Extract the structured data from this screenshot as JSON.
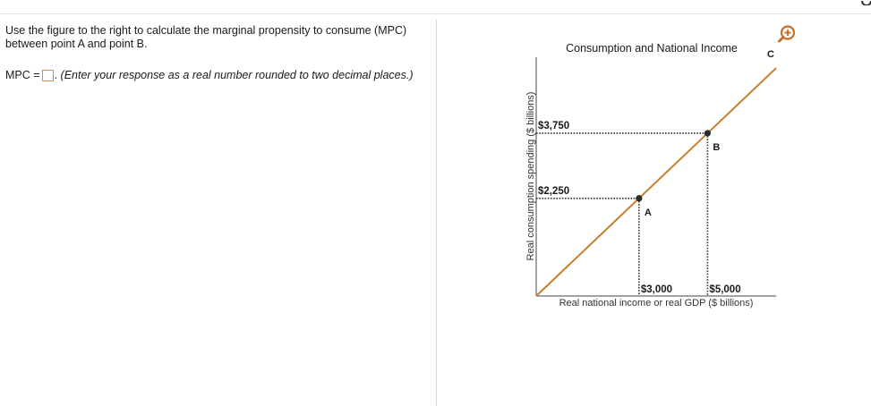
{
  "question": {
    "text": "Use the figure to the right to calculate the marginal propensity to consume (MPC) between point A and point B."
  },
  "answer": {
    "label": "MPC =",
    "input_value": "",
    "suffix": ".",
    "instruction": "(Enter your response as a real number rounded to two decimal places.)"
  },
  "icons": {
    "zoom": "zoom-in-icon",
    "corner": "gear-icon"
  },
  "colors": {
    "line": "#c87f2e",
    "point": "#2b2b2b",
    "zoom": "#c7702a",
    "input_border": "#c9905a"
  },
  "chart_data": {
    "type": "line",
    "title": "Consumption and National Income",
    "xlabel": "Real national income or real GDP ($ billions)",
    "ylabel": "Real consumption spending ($ billions)",
    "series": [
      {
        "x": [
          0,
          3000,
          5000,
          7000
        ],
        "y": [
          0,
          2250,
          3750,
          5250
        ]
      }
    ],
    "points": [
      {
        "label": "A",
        "x": 3000,
        "y": 2250,
        "x_label": "$3,000",
        "y_label": "$2,250"
      },
      {
        "label": "B",
        "x": 5000,
        "y": 3750,
        "x_label": "$5,000",
        "y_label": "$3,750"
      }
    ],
    "line_end_label": "C",
    "xlim": [
      0,
      7000
    ],
    "ylim": [
      0,
      5500
    ],
    "grid": false
  }
}
